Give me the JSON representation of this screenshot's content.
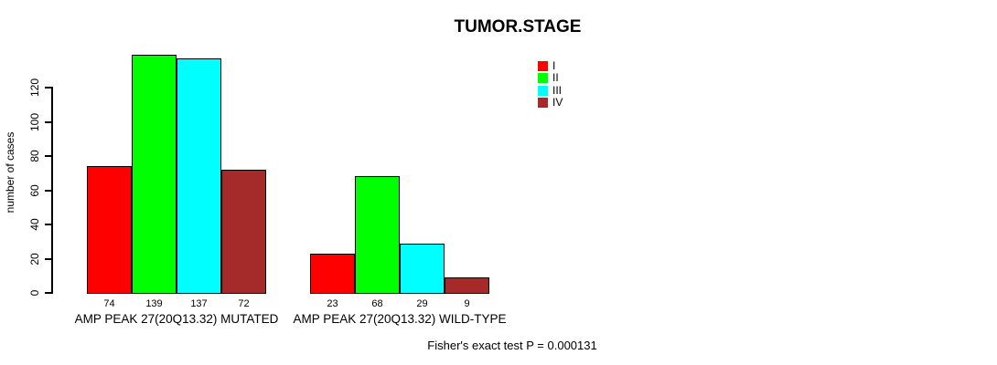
{
  "page": {
    "background": "#FFFFFF"
  },
  "chart_data": {
    "type": "bar",
    "title": "TUMOR.STAGE",
    "xlabel": "",
    "ylabel": "number of cases",
    "ylim": [
      0,
      139
    ],
    "yticks": [
      0,
      20,
      40,
      60,
      80,
      100,
      120
    ],
    "grid": false,
    "legend": {
      "position": "top-right",
      "entries": [
        {
          "label": "I",
          "color": "#FF0000"
        },
        {
          "label": "II",
          "color": "#00FF00"
        },
        {
          "label": "III",
          "color": "#00FFFF"
        },
        {
          "label": "IV",
          "color": "#A52A2A"
        }
      ]
    },
    "categories": [
      "I",
      "II",
      "III",
      "IV"
    ],
    "groups": [
      {
        "label": "AMP PEAK 27(20Q13.32) MUTATED",
        "values": [
          74,
          139,
          137,
          72
        ],
        "bar_labels": [
          "74",
          "139",
          "137",
          "72"
        ]
      },
      {
        "label": "AMP PEAK 27(20Q13.32) WILD-TYPE",
        "values": [
          23,
          68,
          29,
          9
        ],
        "bar_labels": [
          "23",
          "68",
          "29",
          "9"
        ]
      }
    ],
    "annotation": "Fisher's exact test P = 0.000131"
  }
}
